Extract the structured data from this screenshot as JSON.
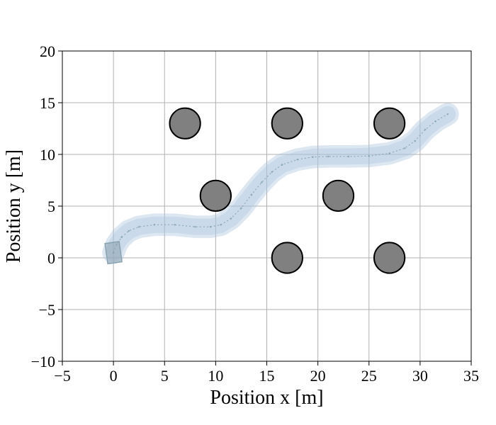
{
  "chart_data": {
    "type": "scatter",
    "xlabel": "Position x [m]",
    "ylabel": "Position y [m]",
    "xlim": [
      -5,
      35
    ],
    "ylim": [
      -10,
      20
    ],
    "xticks": [
      -5,
      0,
      5,
      10,
      15,
      20,
      25,
      30,
      35
    ],
    "yticks": [
      -10,
      -5,
      0,
      5,
      10,
      15,
      20
    ],
    "xtick_labels": [
      "−5",
      "0",
      "5",
      "10",
      "15",
      "20",
      "25",
      "30",
      "35"
    ],
    "ytick_labels": [
      "−10",
      "−5",
      "0",
      "5",
      "10",
      "15",
      "20"
    ],
    "grid": true,
    "obstacles": [
      {
        "x": 7,
        "y": 13,
        "r": 1.5
      },
      {
        "x": 17,
        "y": 13,
        "r": 1.5
      },
      {
        "x": 27,
        "y": 13,
        "r": 1.5
      },
      {
        "x": 10,
        "y": 6,
        "r": 1.5
      },
      {
        "x": 22,
        "y": 6,
        "r": 1.5
      },
      {
        "x": 17,
        "y": 0,
        "r": 1.5
      },
      {
        "x": 27,
        "y": 0,
        "r": 1.5
      }
    ],
    "trajectory": {
      "x": [
        0,
        0.3,
        0.8,
        1.5,
        2.5,
        4,
        6,
        8,
        9.5,
        10.5,
        11.5,
        12.5,
        13.5,
        14.5,
        15.5,
        16.5,
        18,
        19.5,
        21,
        23,
        25,
        27,
        28.5,
        29.5,
        30.5,
        31.5,
        32.7
      ],
      "y": [
        0.5,
        1.3,
        2.0,
        2.6,
        3.0,
        3.2,
        3.2,
        3.0,
        3.0,
        3.2,
        3.8,
        4.8,
        6.1,
        7.3,
        8.3,
        9.0,
        9.5,
        9.75,
        9.8,
        9.8,
        9.85,
        10.1,
        10.6,
        11.3,
        12.4,
        13.2,
        13.9
      ]
    },
    "colors": {
      "obstacle_fill": "#808080",
      "obstacle_edge": "#000000",
      "vehicle_body": "#aac4dd",
      "trajectory_line": "#7e9eae",
      "start_box": "#8aa3b0",
      "grid": "#b0b0b0"
    }
  }
}
